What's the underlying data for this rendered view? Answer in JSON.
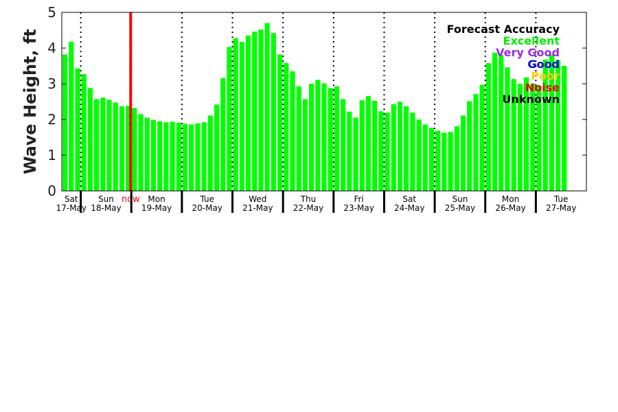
{
  "chart_data": {
    "type": "bar",
    "title": "",
    "ylabel": "Wave Height, ft",
    "ylim": [
      0,
      5
    ],
    "yticks": [
      "0",
      "1",
      "2",
      "3",
      "4",
      "5"
    ],
    "bar_color": "#00ff00",
    "now_color": "#ff0000",
    "now_label": "now",
    "now_index": 11,
    "days": [
      {
        "day": "Sat",
        "date": "17-May"
      },
      {
        "day": "Sun",
        "date": "18-May"
      },
      {
        "day": "Mon",
        "date": "19-May"
      },
      {
        "day": "Tue",
        "date": "20-May"
      },
      {
        "day": "Wed",
        "date": "21-May"
      },
      {
        "day": "Thu",
        "date": "22-May"
      },
      {
        "day": "Fri",
        "date": "23-May"
      },
      {
        "day": "Sat",
        "date": "24-May"
      },
      {
        "day": "Sun",
        "date": "25-May"
      },
      {
        "day": "Mon",
        "date": "26-May"
      },
      {
        "day": "Tue",
        "date": "27-May"
      }
    ],
    "values": [
      3.82,
      4.18,
      3.43,
      3.27,
      2.88,
      2.57,
      2.61,
      2.55,
      2.47,
      2.37,
      2.38,
      2.32,
      2.15,
      2.05,
      1.99,
      1.95,
      1.92,
      1.94,
      1.91,
      1.88,
      1.86,
      1.89,
      1.92,
      2.11,
      2.42,
      3.16,
      4.03,
      4.28,
      4.17,
      4.35,
      4.46,
      4.52,
      4.7,
      4.42,
      3.82,
      3.58,
      3.35,
      2.93,
      2.57,
      3.0,
      3.11,
      3.01,
      2.88,
      2.93,
      2.57,
      2.22,
      2.05,
      2.54,
      2.66,
      2.52,
      2.23,
      2.19,
      2.43,
      2.5,
      2.37,
      2.19,
      2.0,
      1.86,
      1.77,
      1.69,
      1.63,
      1.65,
      1.81,
      2.11,
      2.51,
      2.71,
      2.97,
      3.58,
      3.87,
      3.8,
      3.46,
      3.13,
      3.0,
      3.18,
      3.0,
      2.95,
      3.68,
      3.81,
      3.66,
      3.5
    ],
    "legend": {
      "title": "Forecast Accuracy",
      "position": "top-right",
      "items": [
        {
          "label": "Excellent",
          "color": "#00ee00"
        },
        {
          "label": "Very Good",
          "color": "#9a2be2"
        },
        {
          "label": "Good",
          "color": "#0000cc"
        },
        {
          "label": "Poor",
          "color": "#ffcc00"
        },
        {
          "label": "Noise",
          "color": "#ee0000"
        },
        {
          "label": "Unknown",
          "color": "#000000"
        }
      ]
    }
  }
}
